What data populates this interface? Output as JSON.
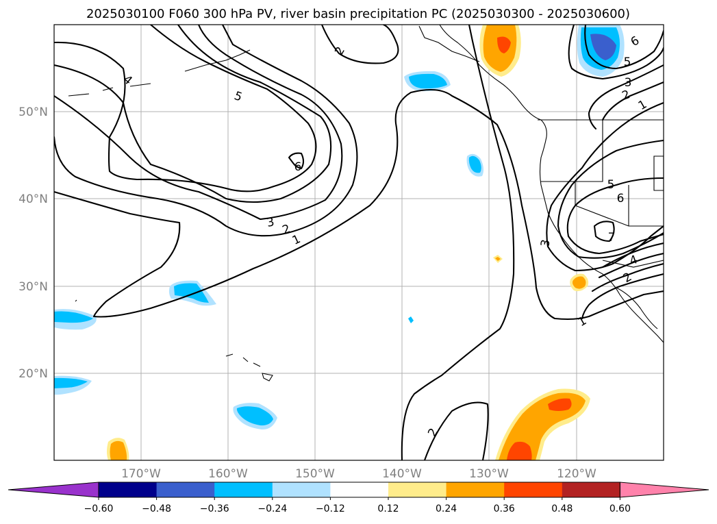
{
  "title": "2025030100 F060 300 hPa PV, river basin precipitation PC (2025030300 - 2025030600)",
  "map": {
    "lat_labels": [
      "50°N",
      "40°N",
      "30°N",
      "20°N"
    ],
    "lon_labels": [
      "170°W",
      "160°W",
      "150°W",
      "140°W",
      "130°W",
      "120°W"
    ]
  },
  "contours": {
    "pv_labels": [
      "4",
      "5",
      "6",
      "2",
      "3",
      "2",
      "1",
      "6",
      "5",
      "3",
      "2",
      "1",
      "5",
      "6",
      "7",
      "3",
      "4",
      "2",
      "1",
      "2"
    ]
  },
  "colorbar": {
    "tick_labels": [
      "−0.60",
      "−0.48",
      "−0.36",
      "−0.24",
      "−0.12",
      "0.12",
      "0.24",
      "0.36",
      "0.48",
      "0.60"
    ],
    "colors": [
      "#9932cc",
      "#00008b",
      "#3a5fcd",
      "#00bfff",
      "#b0e2ff",
      "#ffffff",
      "#ffec8b",
      "#ffa500",
      "#ff4500",
      "#b22222",
      "#ff82ab"
    ]
  }
}
